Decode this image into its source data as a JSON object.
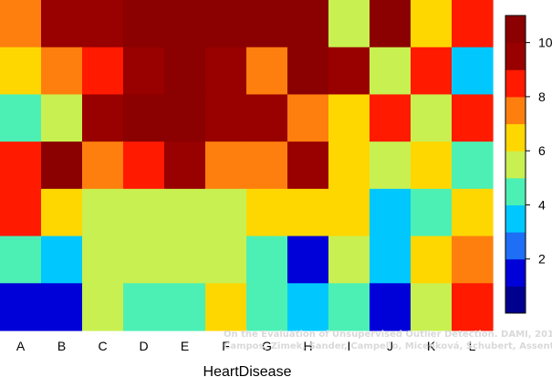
{
  "chart_data": {
    "type": "heatmap",
    "title": "",
    "xlabel": "HeartDisease",
    "ylabel": "",
    "columns": [
      "A",
      "B",
      "C",
      "D",
      "E",
      "F",
      "G",
      "H",
      "I",
      "J",
      "K",
      "L"
    ],
    "rows_top_to_bottom": [
      [
        7,
        9.5,
        9.5,
        10.5,
        10.5,
        10.5,
        10.5,
        10.5,
        5,
        10.5,
        6,
        8
      ],
      [
        6,
        7,
        8,
        9.5,
        10.5,
        9.5,
        7,
        10.5,
        9.5,
        5,
        8,
        3
      ],
      [
        4,
        5,
        9.5,
        10.5,
        10.5,
        9.5,
        9.5,
        7,
        6,
        8,
        5,
        8
      ],
      [
        8,
        10.5,
        7,
        8,
        9.5,
        7,
        7,
        9.5,
        6,
        5,
        6,
        4
      ],
      [
        8,
        6,
        5,
        5,
        5,
        5,
        6,
        6,
        6,
        3,
        4,
        6
      ],
      [
        4,
        3,
        5,
        5,
        5,
        5,
        4,
        1,
        5,
        3,
        6,
        7
      ],
      [
        1,
        1,
        5,
        4,
        4,
        6,
        4,
        3,
        4,
        1,
        5,
        8
      ]
    ],
    "colorbar": {
      "min": 0,
      "max": 11,
      "ticks": [
        2,
        4,
        6,
        8,
        10
      ],
      "colors": [
        "#00008F",
        "#0000D9",
        "#1E6FF5",
        "#00C8FF",
        "#4CF0B4",
        "#C8F050",
        "#FFD700",
        "#FF7F0E",
        "#FF1A00",
        "#990000",
        "#8B0000"
      ]
    },
    "grid": false,
    "legend": "colorbar-right"
  },
  "credit": {
    "line1": "On the Evaluation of Unsupervised Outlier Detection. DAMI, 2015.",
    "line2": "Campos, Zimek, Sander, Campello, Micenková, Schubert, Assent, Houle"
  }
}
